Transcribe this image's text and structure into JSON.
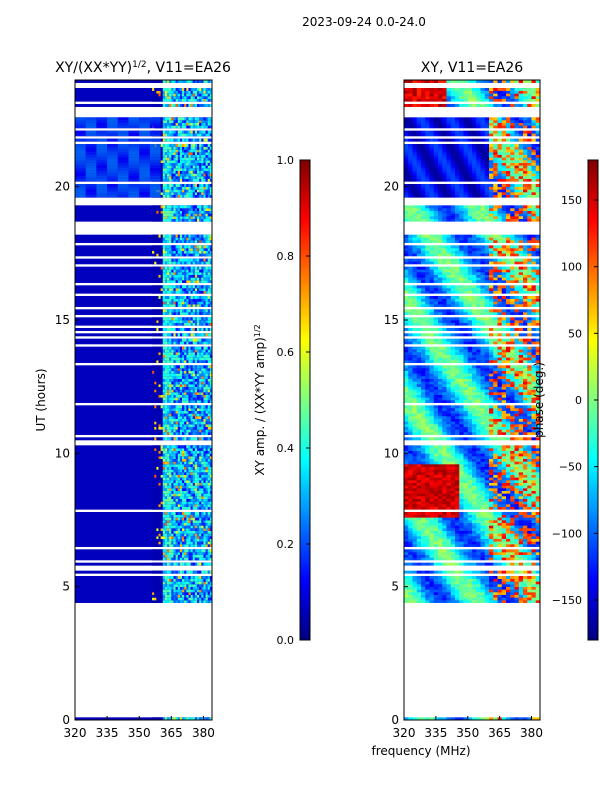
{
  "suptitle": "2023-09-24 0.0-24.0",
  "shared_xlabel": "frequency (MHz)",
  "chart_data": [
    {
      "type": "heatmap",
      "title_base": "XY/(XX*YY)",
      "title_sup": "1/2",
      "title_tail": ", V11=EA26",
      "ylabel": "UT (hours)",
      "xlim": [
        320,
        384
      ],
      "ylim": [
        0,
        24
      ],
      "x_ticks": [
        320,
        335,
        350,
        365,
        380
      ],
      "y_ticks": [
        0,
        5,
        10,
        15,
        20
      ],
      "colorbar": {
        "label_base": "XY amp. / (XX*YY amp)",
        "label_sup": "1/2",
        "range": [
          0.0,
          1.0
        ],
        "ticks": [
          "0.0",
          "0.2",
          "0.4",
          "0.6",
          "0.8",
          "1.0"
        ],
        "tick_values": [
          0,
          0.2,
          0.4,
          0.6,
          0.8,
          1.0
        ]
      },
      "data_intervals_hours": [
        [
          0,
          0.1
        ],
        [
          4.4,
          13.9
        ],
        [
          14,
          22.6
        ],
        [
          22.7,
          24
        ]
      ],
      "rfi_band_mhz": [
        [
          360,
          364
        ],
        [
          364,
          376
        ],
        [
          376,
          384
        ]
      ],
      "approx_levels": {
        "background": 0.0,
        "rfi_band": 0.3,
        "peaks": 0.7
      }
    },
    {
      "type": "heatmap",
      "title": "XY, V11=EA26",
      "ylabel": "",
      "xlim": [
        320,
        384
      ],
      "ylim": [
        0,
        24
      ],
      "x_ticks": [
        320,
        335,
        350,
        365,
        380
      ],
      "y_ticks": [
        0,
        5,
        10,
        15,
        20
      ],
      "colorbar": {
        "label": "phase (deg.)",
        "range": [
          -180,
          180
        ],
        "ticks": [
          "−150",
          "−100",
          "−50",
          "0",
          "50",
          "100",
          "150"
        ],
        "tick_values": [
          -150,
          -100,
          -50,
          0,
          50,
          100,
          150
        ]
      },
      "data_intervals_hours": [
        [
          0,
          0.1
        ],
        [
          4.4,
          13.9
        ],
        [
          14,
          22.6
        ],
        [
          22.7,
          24
        ]
      ],
      "approx_phase_deg": {
        "typical": -40,
        "range": [
          -180,
          180
        ]
      }
    }
  ]
}
